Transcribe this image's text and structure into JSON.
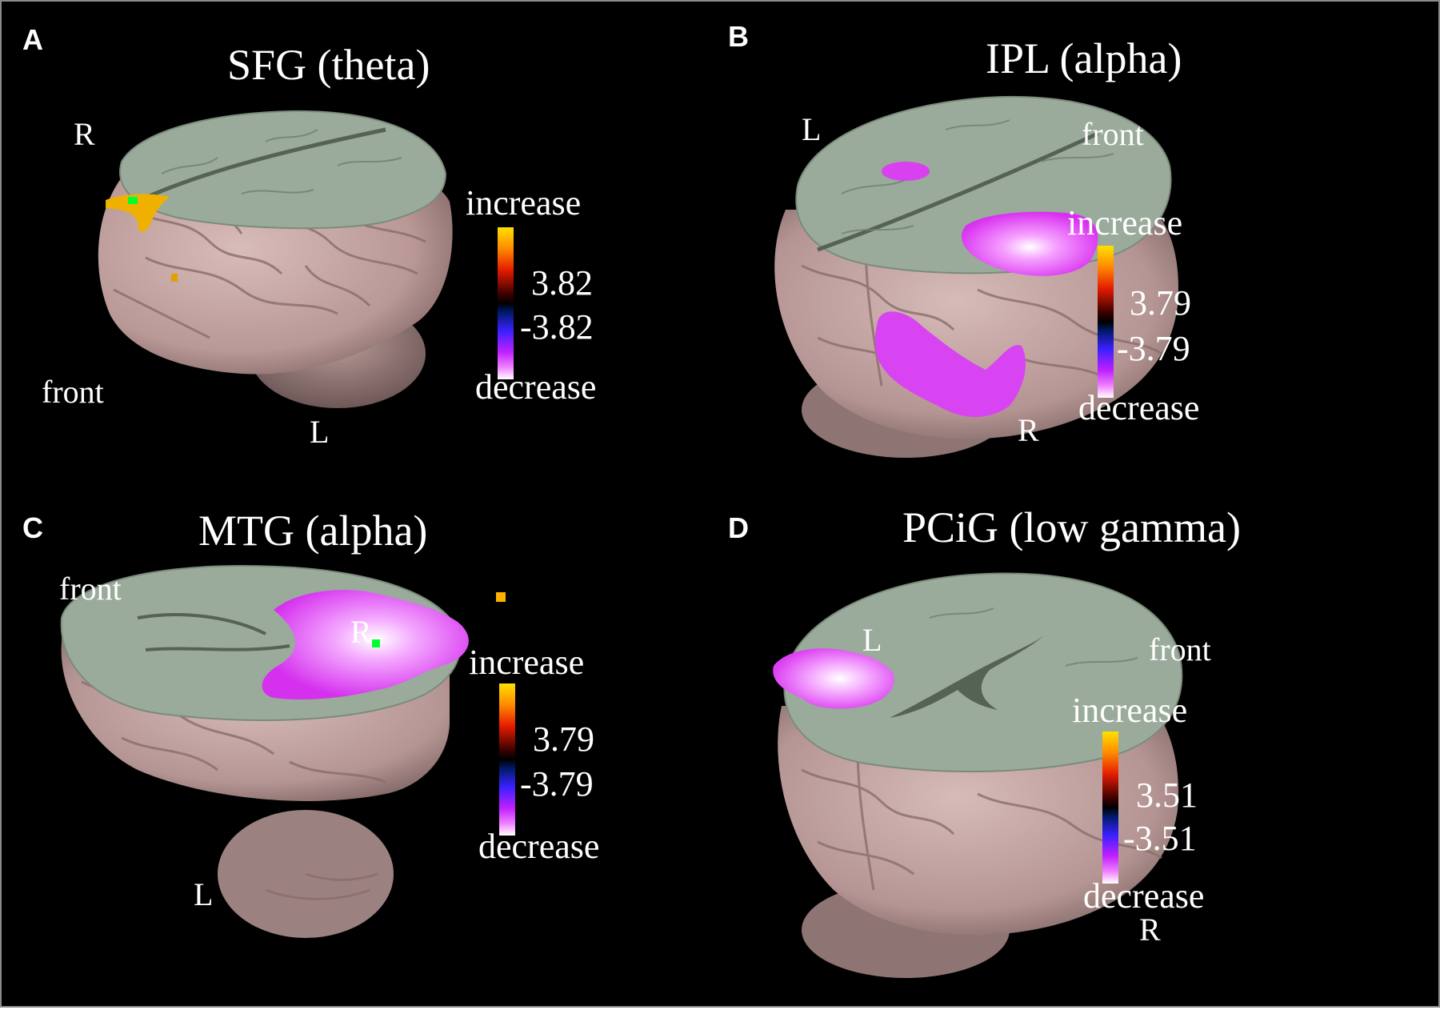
{
  "panels": [
    {
      "letter": "A",
      "title": "SFG (theta)",
      "orientation": {
        "top": "R",
        "left": "front",
        "bottom": "L"
      },
      "colorbar": {
        "increase": "increase",
        "pos": "3.82",
        "neg": "-3.82",
        "decrease": "decrease"
      }
    },
    {
      "letter": "B",
      "title": "IPL (alpha)",
      "orientation": {
        "top_left": "L",
        "top_right": "front",
        "bottom": "R"
      },
      "colorbar": {
        "increase": "increase",
        "pos": "3.79",
        "neg": "-3.79",
        "decrease": "decrease"
      }
    },
    {
      "letter": "C",
      "title": "MTG (alpha)",
      "orientation": {
        "top_left": "front",
        "top": "R",
        "bottom": "L"
      },
      "colorbar": {
        "increase": "increase",
        "pos": "3.79",
        "neg": "-3.79",
        "decrease": "decrease"
      }
    },
    {
      "letter": "D",
      "title": "PCiG (low gamma)",
      "orientation": {
        "top_left": "L",
        "top_right": "front",
        "bottom": "R"
      },
      "colorbar": {
        "increase": "increase",
        "pos": "3.51",
        "neg": "-3.51",
        "decrease": "decrease"
      }
    }
  ],
  "colors": {
    "background": "#000000",
    "cortex": "#c9aaa8",
    "slice": "#98a898",
    "increase": "#ffb000",
    "decrease": "#e040ff",
    "seed": "#00ff30"
  }
}
